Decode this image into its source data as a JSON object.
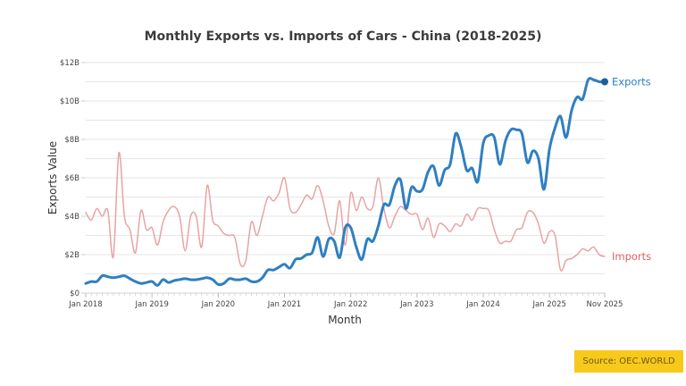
{
  "chart_data": {
    "type": "line",
    "title": "Monthly Exports vs. Imports of Cars - China (2018-2025)",
    "xlabel": "Month",
    "ylabel": "Exports Value",
    "ylim": [
      0,
      12
    ],
    "y_unit": "billion USD",
    "y_ticks": [
      {
        "value": 0,
        "label": "$0"
      },
      {
        "value": 2,
        "label": "$2B"
      },
      {
        "value": 4,
        "label": "$4B"
      },
      {
        "value": 6,
        "label": "$6B"
      },
      {
        "value": 8,
        "label": "$8B"
      },
      {
        "value": 10,
        "label": "$10B"
      },
      {
        "value": 12,
        "label": "$12B"
      }
    ],
    "minor_gridlines_every": 1,
    "x_start": "Jan 2018",
    "x_end": "Nov 2025",
    "x_ticks": [
      {
        "month_index": 0,
        "label": "Jan 2018"
      },
      {
        "month_index": 12,
        "label": "Jan 2019"
      },
      {
        "month_index": 24,
        "label": "Jan 2020"
      },
      {
        "month_index": 36,
        "label": "Jan 2021"
      },
      {
        "month_index": 48,
        "label": "Jan 2022"
      },
      {
        "month_index": 60,
        "label": "Jan 2023"
      },
      {
        "month_index": 72,
        "label": "Jan 2024"
      },
      {
        "month_index": 84,
        "label": "Jan 2025"
      },
      {
        "month_index": 94,
        "label": "Nov 2025"
      }
    ],
    "grid": true,
    "legend": "inline labels at line ends (right)",
    "series": [
      {
        "name": "Exports",
        "color": "#2f7fc1",
        "end_marker": true,
        "values": [
          0.5,
          0.6,
          0.6,
          0.9,
          0.85,
          0.8,
          0.85,
          0.9,
          0.75,
          0.6,
          0.5,
          0.55,
          0.6,
          0.4,
          0.7,
          0.55,
          0.65,
          0.7,
          0.75,
          0.7,
          0.7,
          0.75,
          0.8,
          0.7,
          0.45,
          0.5,
          0.75,
          0.7,
          0.7,
          0.75,
          0.6,
          0.6,
          0.8,
          1.2,
          1.2,
          1.35,
          1.5,
          1.3,
          1.75,
          1.8,
          2.0,
          2.1,
          2.9,
          1.9,
          2.8,
          2.7,
          1.85,
          3.4,
          3.4,
          2.4,
          1.75,
          2.8,
          2.7,
          3.5,
          4.6,
          4.6,
          5.6,
          5.9,
          4.4,
          5.5,
          5.3,
          5.4,
          6.3,
          6.6,
          5.6,
          6.4,
          6.7,
          8.3,
          7.6,
          6.4,
          6.5,
          5.8,
          7.8,
          8.2,
          8.1,
          6.7,
          7.9,
          8.5,
          8.5,
          8.3,
          6.8,
          7.4,
          7.0,
          5.4,
          7.5,
          8.6,
          9.2,
          8.1,
          9.5,
          10.2,
          10.1,
          11.1,
          11.1,
          11.0,
          11.0
        ]
      },
      {
        "name": "Imports",
        "color": "#e8a3a3",
        "label_color": "#e06060",
        "end_marker": false,
        "values": [
          4.2,
          3.8,
          4.4,
          4.0,
          4.3,
          1.9,
          7.3,
          4.0,
          3.3,
          2.1,
          4.3,
          3.3,
          3.4,
          2.5,
          3.7,
          4.3,
          4.5,
          4.0,
          2.2,
          4.0,
          4.0,
          2.4,
          5.6,
          3.8,
          3.5,
          3.1,
          3.0,
          2.9,
          1.5,
          1.7,
          3.7,
          3.0,
          4.0,
          5.0,
          4.8,
          5.2,
          6.0,
          4.4,
          4.2,
          4.6,
          5.1,
          4.9,
          5.6,
          4.8,
          3.5,
          3.1,
          4.8,
          2.5,
          5.2,
          4.3,
          5.0,
          4.4,
          4.5,
          6.0,
          4.4,
          3.4,
          4.0,
          4.5,
          4.3,
          4.1,
          4.1,
          3.3,
          3.9,
          2.9,
          3.6,
          3.5,
          3.2,
          3.6,
          3.5,
          4.1,
          3.8,
          4.4,
          4.4,
          4.3,
          3.3,
          2.6,
          2.7,
          2.7,
          3.3,
          3.4,
          4.2,
          4.2,
          3.6,
          2.6,
          3.2,
          3.0,
          1.2,
          1.7,
          1.8,
          2.0,
          2.3,
          2.2,
          2.4,
          2.0,
          1.9
        ]
      }
    ]
  },
  "source": {
    "label": "Source: OEC.WORLD",
    "background": "#f7c91b"
  }
}
